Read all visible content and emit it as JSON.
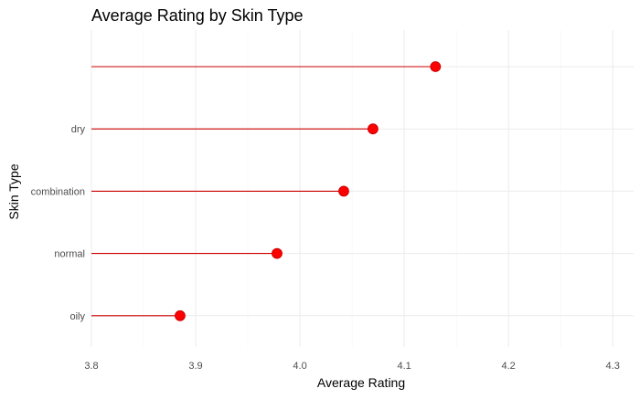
{
  "chart_data": {
    "type": "lollipop",
    "title": "Average Rating by Skin Type",
    "xlabel": "Average Rating",
    "ylabel": "Skin Type",
    "xlim": [
      3.8,
      4.32
    ],
    "x_ticks": [
      "3.8",
      "3.9",
      "4.0",
      "4.1",
      "4.2",
      "4.3"
    ],
    "x_tick_values": [
      3.8,
      3.9,
      4.0,
      4.1,
      4.2,
      4.3
    ],
    "baseline": 3.8,
    "categories": [
      "",
      "dry",
      "combination",
      "normal",
      "oily"
    ],
    "values": [
      4.13,
      4.07,
      4.042,
      3.978,
      3.885
    ],
    "grid": true,
    "legend": "none",
    "colors": {
      "segment": "#cc0000",
      "point": "#ff0000",
      "point_outline": "#cc0000",
      "grid_major": "#ebebeb",
      "grid_minor": "#f5f5f5"
    }
  }
}
